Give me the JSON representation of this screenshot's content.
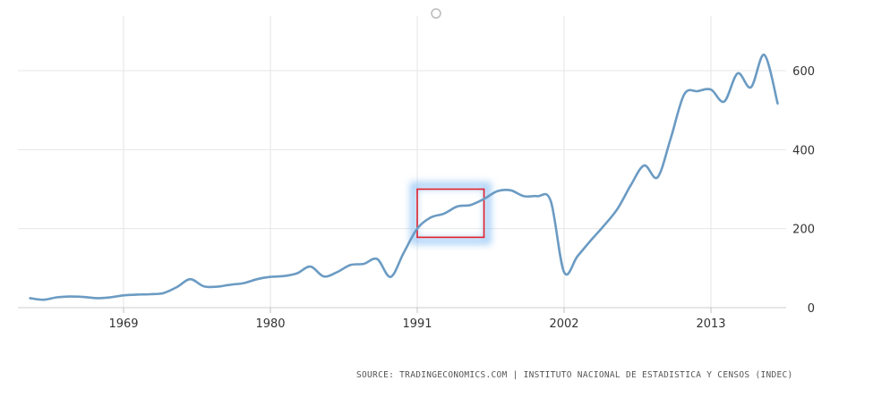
{
  "chart_data": {
    "type": "line",
    "title": "",
    "xlabel": "",
    "ylabel": "",
    "x_ticks": [
      "1969",
      "1980",
      "1991",
      "2002",
      "2013"
    ],
    "y_ticks": [
      "0",
      "200",
      "400",
      "600"
    ],
    "xlim": [
      1962,
      2020
    ],
    "ylim": [
      0,
      680
    ],
    "grid": true,
    "y_axis_position": "right",
    "series": [
      {
        "color": "#6b9bc3",
        "x": [
          1962,
          1963,
          1964,
          1965,
          1966,
          1967,
          1968,
          1969,
          1970,
          1971,
          1972,
          1973,
          1974,
          1975,
          1976,
          1977,
          1978,
          1979,
          1980,
          1981,
          1982,
          1983,
          1984,
          1985,
          1986,
          1987,
          1988,
          1989,
          1990,
          1991,
          1992,
          1993,
          1994,
          1995,
          1996,
          1997,
          1998,
          1999,
          2000,
          2001,
          2002,
          2003,
          2004,
          2005,
          2006,
          2007,
          2008,
          2009,
          2010,
          2011,
          2012,
          2013,
          2014,
          2015,
          2016,
          2017,
          2018
        ],
        "y": [
          24,
          20,
          26,
          28,
          27,
          24,
          26,
          31,
          33,
          34,
          37,
          52,
          72,
          54,
          53,
          58,
          62,
          72,
          78,
          80,
          87,
          104,
          79,
          90,
          108,
          111,
          123,
          78,
          140,
          200,
          228,
          238,
          256,
          260,
          275,
          295,
          297,
          282,
          282,
          270,
          90,
          130,
          170,
          208,
          250,
          310,
          360,
          330,
          430,
          540,
          548,
          552,
          522,
          593,
          558,
          640,
          517
        ]
      }
    ],
    "annotations": [
      {
        "type": "highlight-box",
        "x_range": [
          1991,
          1996
        ],
        "y_range": [
          178,
          300
        ],
        "color": "#e0202c"
      }
    ]
  },
  "footer": {
    "source": "SOURCE: TRADINGECONOMICS.COM | INSTITUTO NACIONAL DE ESTADISTICA Y CENSOS (INDEC)"
  }
}
